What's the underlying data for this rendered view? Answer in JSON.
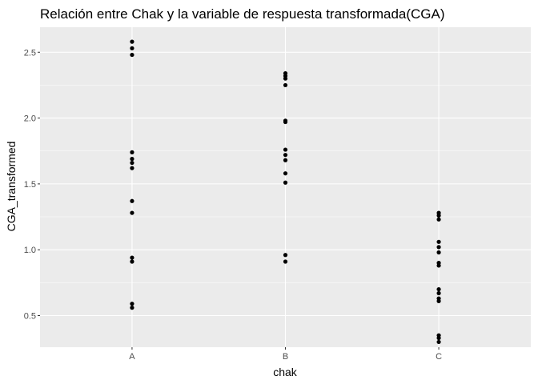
{
  "chart_data": {
    "type": "scatter",
    "title": "Relación entre Chak y la variable de respuesta transformada(CGA)",
    "xlabel": "chak",
    "ylabel": "CGA_transformed",
    "categories": [
      "A",
      "B",
      "C"
    ],
    "ylim": [
      0.3,
      2.6
    ],
    "yticks": [
      0.5,
      1.0,
      1.5,
      2.0,
      2.5
    ],
    "ytick_labels": [
      "0.5",
      "1.0",
      "1.5",
      "2.0",
      "2.5"
    ],
    "grid": true,
    "points": [
      {
        "x": "A",
        "y": 2.58
      },
      {
        "x": "A",
        "y": 2.53
      },
      {
        "x": "A",
        "y": 2.48
      },
      {
        "x": "A",
        "y": 1.74
      },
      {
        "x": "A",
        "y": 1.69
      },
      {
        "x": "A",
        "y": 1.66
      },
      {
        "x": "A",
        "y": 1.62
      },
      {
        "x": "A",
        "y": 1.37
      },
      {
        "x": "A",
        "y": 1.28
      },
      {
        "x": "A",
        "y": 0.94
      },
      {
        "x": "A",
        "y": 0.91
      },
      {
        "x": "A",
        "y": 0.59
      },
      {
        "x": "A",
        "y": 0.56
      },
      {
        "x": "B",
        "y": 2.34
      },
      {
        "x": "B",
        "y": 2.32
      },
      {
        "x": "B",
        "y": 2.3
      },
      {
        "x": "B",
        "y": 2.25
      },
      {
        "x": "B",
        "y": 1.98
      },
      {
        "x": "B",
        "y": 1.97
      },
      {
        "x": "B",
        "y": 1.76
      },
      {
        "x": "B",
        "y": 1.72
      },
      {
        "x": "B",
        "y": 1.68
      },
      {
        "x": "B",
        "y": 1.58
      },
      {
        "x": "B",
        "y": 1.51
      },
      {
        "x": "B",
        "y": 0.96
      },
      {
        "x": "B",
        "y": 0.91
      },
      {
        "x": "C",
        "y": 1.28
      },
      {
        "x": "C",
        "y": 1.26
      },
      {
        "x": "C",
        "y": 1.23
      },
      {
        "x": "C",
        "y": 1.06
      },
      {
        "x": "C",
        "y": 1.02
      },
      {
        "x": "C",
        "y": 0.98
      },
      {
        "x": "C",
        "y": 0.9
      },
      {
        "x": "C",
        "y": 0.88
      },
      {
        "x": "C",
        "y": 0.7
      },
      {
        "x": "C",
        "y": 0.67
      },
      {
        "x": "C",
        "y": 0.63
      },
      {
        "x": "C",
        "y": 0.61
      },
      {
        "x": "C",
        "y": 0.35
      },
      {
        "x": "C",
        "y": 0.33
      },
      {
        "x": "C",
        "y": 0.3
      }
    ],
    "colors": {
      "panel_background": "#ebebeb",
      "grid_major": "#ffffff",
      "point": "#000000"
    }
  }
}
